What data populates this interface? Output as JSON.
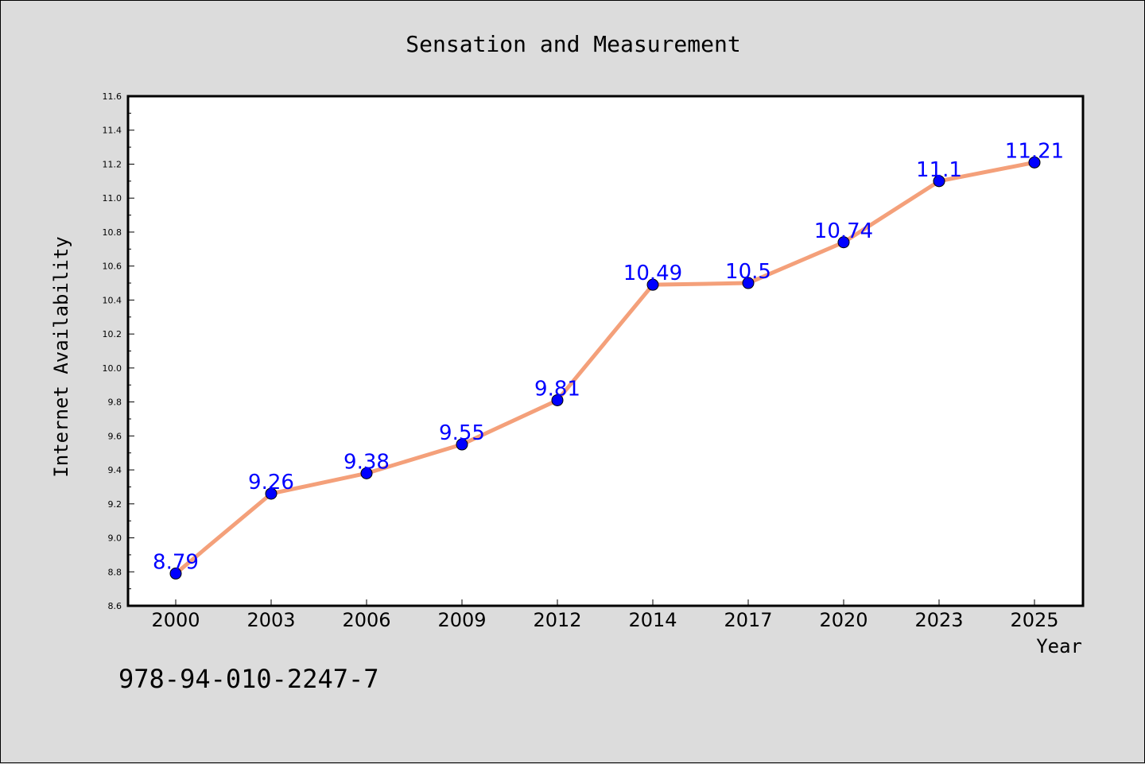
{
  "chart_data": {
    "type": "line",
    "title": "Sensation and Measurement",
    "xlabel": "Year",
    "ylabel": "Internet Availability",
    "categories": [
      "2000",
      "2003",
      "2006",
      "2009",
      "2012",
      "2014",
      "2017",
      "2020",
      "2023",
      "2025"
    ],
    "series": [
      {
        "values": [
          8.79,
          9.26,
          9.38,
          9.55,
          9.81,
          10.49,
          10.5,
          10.74,
          11.1,
          11.21
        ],
        "data_labels": [
          "8.79",
          "9.26",
          "9.38",
          "9.55",
          "9.81",
          "10.49",
          "10.5",
          "10.74",
          "11.1",
          "11.21"
        ]
      }
    ],
    "ylim": [
      8.6,
      11.6
    ],
    "yticks": [
      "8.6",
      "8.8",
      "9.0",
      "9.2",
      "9.4",
      "9.6",
      "9.8",
      "10.0",
      "10.2",
      "10.4",
      "10.6",
      "10.8",
      "11.0",
      "11.2",
      "11.4",
      "11.6"
    ],
    "grid": false,
    "colors": {
      "line": "#f4a07a",
      "marker": "#0000ff",
      "data_label": "#0000ff",
      "plot_background": "#ffffff",
      "figure_background": "#dcdcdc"
    }
  },
  "footer": {
    "isbn": "978-94-010-2247-7"
  }
}
